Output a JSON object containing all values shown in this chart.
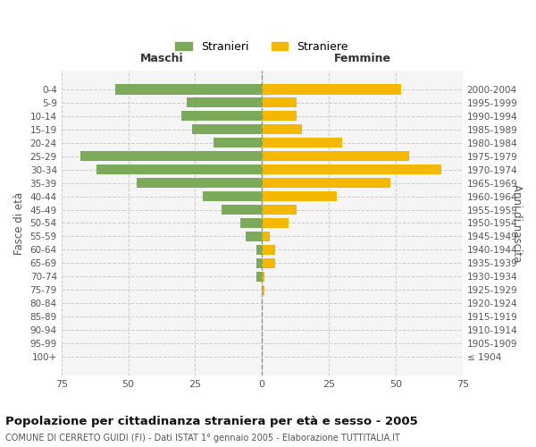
{
  "age_groups": [
    "100+",
    "95-99",
    "90-94",
    "85-89",
    "80-84",
    "75-79",
    "70-74",
    "65-69",
    "60-64",
    "55-59",
    "50-54",
    "45-49",
    "40-44",
    "35-39",
    "30-34",
    "25-29",
    "20-24",
    "15-19",
    "10-14",
    "5-9",
    "0-4"
  ],
  "birth_years": [
    "≤ 1904",
    "1905-1909",
    "1910-1914",
    "1915-1919",
    "1920-1924",
    "1925-1929",
    "1930-1934",
    "1935-1939",
    "1940-1944",
    "1945-1949",
    "1950-1954",
    "1955-1959",
    "1960-1964",
    "1965-1969",
    "1970-1974",
    "1975-1979",
    "1980-1984",
    "1985-1989",
    "1990-1994",
    "1995-1999",
    "2000-2004"
  ],
  "males": [
    0,
    0,
    0,
    0,
    0,
    0,
    2,
    2,
    2,
    6,
    8,
    15,
    22,
    47,
    62,
    68,
    18,
    26,
    30,
    28,
    55
  ],
  "females": [
    0,
    0,
    0,
    0,
    0,
    1,
    1,
    5,
    5,
    3,
    10,
    13,
    28,
    48,
    67,
    55,
    30,
    15,
    13,
    13,
    52
  ],
  "male_color": "#7aaa5a",
  "female_color": "#f5b800",
  "background_color": "#f5f5f5",
  "grid_color": "#cccccc",
  "title": "Popolazione per cittadinanza straniera per età e sesso - 2005",
  "subtitle": "COMUNE DI CERRETO GUIDI (FI) - Dati ISTAT 1° gennaio 2005 - Elaborazione TUTTITALIA.IT",
  "xlabel_left": "Maschi",
  "xlabel_right": "Femmine",
  "ylabel_left": "Fasce di età",
  "ylabel_right": "Anni di nascita",
  "xlim": 75,
  "legend_male": "Stranieri",
  "legend_female": "Straniere"
}
